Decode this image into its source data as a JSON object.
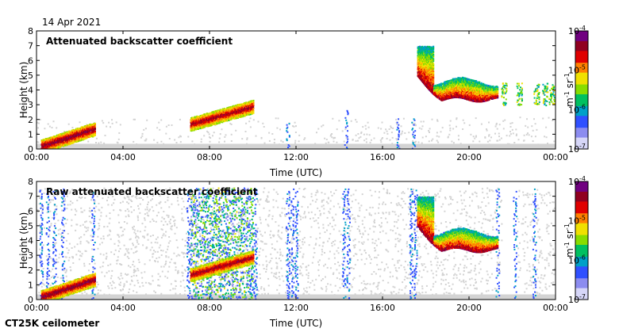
{
  "page": {
    "date": "14 Apr 2021",
    "instrument": "CT25K ceilometer"
  },
  "colormap": [
    "#d6d6f8",
    "#8c8cf0",
    "#3050ff",
    "#00a0c8",
    "#00c060",
    "#88dd00",
    "#f0e000",
    "#ff8000",
    "#e00000",
    "#900020",
    "#700080"
  ],
  "colors": {
    "background": "#ffffff",
    "low_signal_grey": "#d3d3d3",
    "clutter_blue": "#5a6ef0"
  },
  "chart_data": [
    {
      "type": "heatmap",
      "title": "Attenuated backscatter coefficient",
      "xlabel": "Time (UTC)",
      "ylabel": "Height (km)",
      "xlim": [
        0,
        24
      ],
      "ylim": [
        0,
        8
      ],
      "x_tick_values": [
        0,
        4,
        8,
        12,
        16,
        20,
        24
      ],
      "x_tick_labels": [
        "00:00",
        "04:00",
        "08:00",
        "12:00",
        "16:00",
        "20:00",
        "00:00"
      ],
      "y_tick_values": [
        0,
        1,
        2,
        3,
        4,
        5,
        6,
        7,
        8
      ],
      "y_tick_labels": [
        "0",
        "1",
        "2",
        "3",
        "4",
        "5",
        "6",
        "7",
        "8"
      ],
      "colorbar": {
        "scale": "log",
        "range": [
          1e-07,
          0.0001
        ],
        "tick_values": [
          -7,
          -6,
          -5,
          -4
        ],
        "tick_labels": [
          "10",
          "10",
          "10",
          "10"
        ],
        "tick_exponents": [
          "-7",
          "-6",
          "-5",
          "-4"
        ],
        "unit_m": "m",
        "unit_m_exp": "-1",
        "unit_sr": " sr",
        "unit_sr_exp": "-1"
      },
      "features": [
        {
          "kind": "boundary_layer",
          "t_start": 0.2,
          "t_end": 2.7,
          "h_start": 0.2,
          "h_end": 1.4,
          "log_value": -5.2
        },
        {
          "kind": "boundary_layer",
          "t_start": 7.1,
          "t_end": 10.0,
          "h_start": 1.7,
          "h_end": 2.9,
          "log_value": -5.3
        },
        {
          "kind": "cloud_layer",
          "t_start": 17.6,
          "t_end": 21.3,
          "h_top": 7.0,
          "h_base": 3.4,
          "log_value": -5.1
        },
        {
          "kind": "cloud_patches",
          "t_start": 21.4,
          "t_end": 24.0,
          "h_start": 3.0,
          "h_end": 4.5,
          "log_value": -5.6
        }
      ]
    },
    {
      "type": "heatmap",
      "title": "Raw attenuated backscatter coefficient",
      "xlabel": "Time (UTC)",
      "ylabel": "Height (km)",
      "xlim": [
        0,
        24
      ],
      "ylim": [
        0,
        8
      ],
      "x_tick_values": [
        0,
        4,
        8,
        12,
        16,
        20,
        24
      ],
      "x_tick_labels": [
        "00:00",
        "04:00",
        "08:00",
        "12:00",
        "16:00",
        "20:00",
        "00:00"
      ],
      "y_tick_values": [
        0,
        1,
        2,
        3,
        4,
        5,
        6,
        7,
        8
      ],
      "y_tick_labels": [
        "0",
        "1",
        "2",
        "3",
        "4",
        "5",
        "6",
        "7",
        "8"
      ],
      "colorbar": {
        "scale": "log",
        "range": [
          1e-07,
          0.0001
        ],
        "tick_values": [
          -7,
          -6,
          -5,
          -4
        ],
        "tick_labels": [
          "10",
          "10",
          "10",
          "10"
        ],
        "tick_exponents": [
          "-7",
          "-6",
          "-5",
          "-4"
        ],
        "unit_m": "m",
        "unit_m_exp": "-1",
        "unit_sr": " sr",
        "unit_sr_exp": "-1"
      },
      "features": [
        {
          "kind": "boundary_layer",
          "t_start": 0.2,
          "t_end": 2.7,
          "h_start": 0.2,
          "h_end": 1.4,
          "log_value": -5.2
        },
        {
          "kind": "noise_column",
          "t_start": 7.1,
          "t_end": 10.0,
          "h_start": 0.0,
          "h_end": 7.6,
          "log_value": -6.0
        },
        {
          "kind": "boundary_layer",
          "t_start": 7.1,
          "t_end": 10.0,
          "h_start": 1.7,
          "h_end": 2.9,
          "log_value": -5.3
        },
        {
          "kind": "cloud_layer",
          "t_start": 17.6,
          "t_end": 21.3,
          "h_top": 7.0,
          "h_base": 3.4,
          "log_value": -5.1
        }
      ]
    }
  ]
}
